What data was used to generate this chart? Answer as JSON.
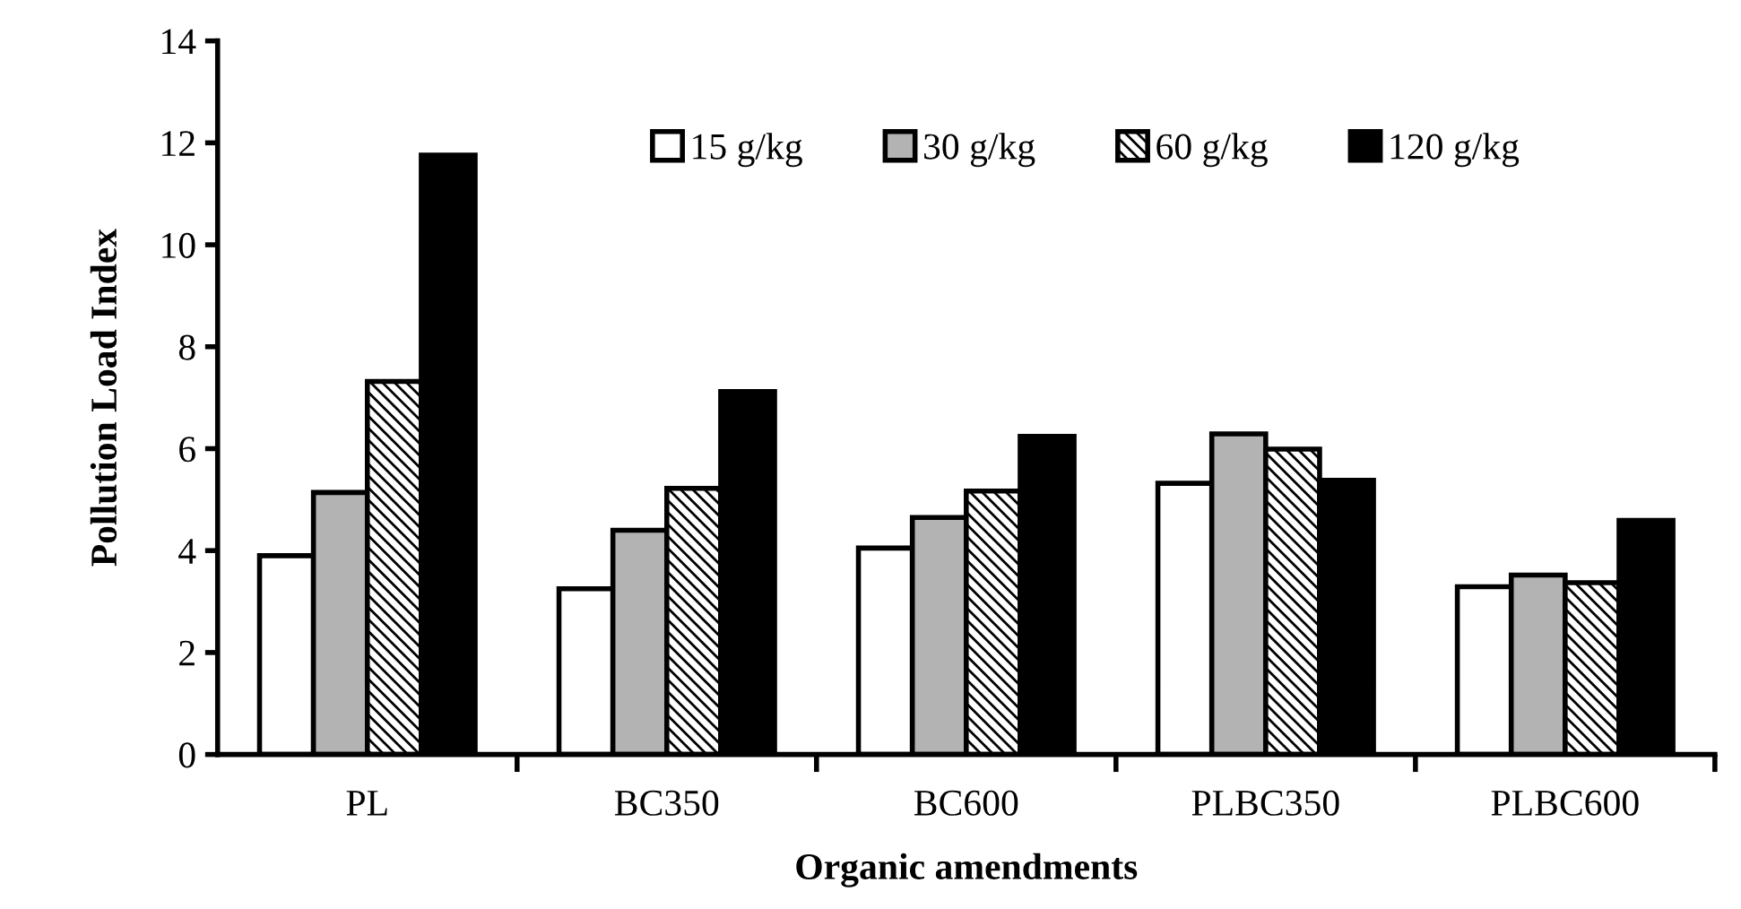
{
  "chart_data": {
    "type": "bar",
    "xlabel": "Organic amendments",
    "ylabel": "Pollution Load Index",
    "categories": [
      "PL",
      "BC350",
      "BC600",
      "PLBC350",
      "PLBC600"
    ],
    "series": [
      {
        "name": "15 g/kg",
        "color": "#ffffff",
        "values": [
          3.9,
          3.25,
          4.05,
          5.32,
          3.29
        ]
      },
      {
        "name": "30 g/kg",
        "color": "#b3b3b3",
        "values": [
          5.14,
          4.4,
          4.65,
          6.29,
          3.52
        ]
      },
      {
        "name": "60 g/kg",
        "color": "#000000",
        "values": [
          7.32,
          5.22,
          5.17,
          5.99,
          3.37
        ]
      },
      {
        "name": "120 g/kg",
        "color": "#000000",
        "values": [
          11.76,
          7.12,
          6.24,
          5.38,
          4.59
        ]
      }
    ],
    "ylim": [
      0,
      14
    ],
    "yticks": [
      0,
      2,
      4,
      6,
      8,
      10,
      12,
      14
    ],
    "grid": false,
    "legend": "top"
  }
}
